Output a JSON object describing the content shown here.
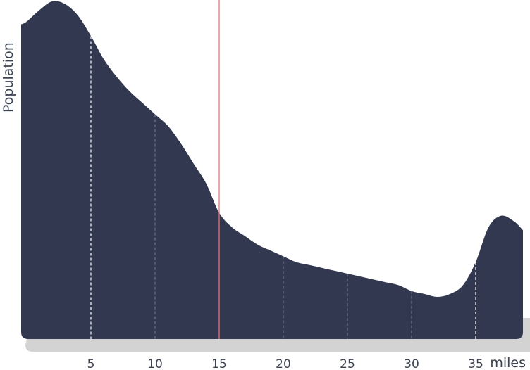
{
  "chart_data": {
    "type": "area",
    "title": "",
    "ylabel": "Population",
    "xlabel": "miles",
    "xlim": [
      0,
      39
    ],
    "ylim": [
      0,
      100
    ],
    "x_ticks": [
      5,
      10,
      15,
      20,
      25,
      30,
      35
    ],
    "x_tick_labels": [
      "5",
      "10",
      "15",
      "20",
      "25",
      "30",
      "35"
    ],
    "grid": "vertical dashed lines inside area at tick positions",
    "marker": {
      "x": 15,
      "color": "#e8756f"
    },
    "colors": {
      "area": "#313850",
      "shadow": "#d3d3d3",
      "text": "#3a4254"
    },
    "series": [
      {
        "x": [
          0,
          1,
          2,
          3,
          4,
          5,
          6,
          7,
          8,
          9,
          10,
          11,
          12,
          13,
          14,
          15,
          16,
          17,
          18,
          19,
          20,
          21,
          22,
          23,
          24,
          25,
          26,
          27,
          28,
          29,
          30,
          31,
          32,
          33,
          34,
          35,
          36,
          37,
          38,
          39
        ],
        "y": [
          95,
          99,
          102,
          101,
          97,
          90,
          82,
          76,
          71,
          67,
          63,
          59,
          53,
          46,
          39,
          29,
          24,
          21,
          18,
          16,
          14,
          12,
          11,
          10,
          9,
          8,
          7,
          6,
          5,
          4,
          2,
          1,
          0,
          1,
          4,
          12,
          24,
          28,
          26,
          23
        ]
      }
    ]
  }
}
